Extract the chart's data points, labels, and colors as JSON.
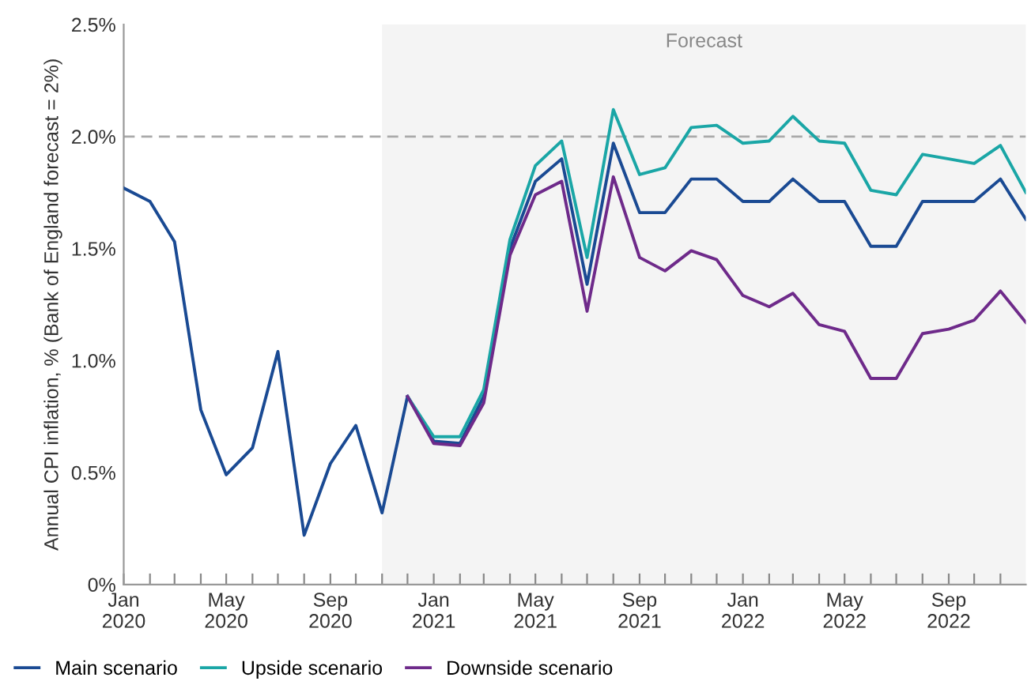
{
  "chart_data": {
    "type": "line",
    "ylabel": "Annual CPI inflation, % (Bank of England forecast = 2%)",
    "x": [
      "2020-01",
      "2020-02",
      "2020-03",
      "2020-04",
      "2020-05",
      "2020-06",
      "2020-07",
      "2020-08",
      "2020-09",
      "2020-10",
      "2020-11",
      "2020-12",
      "2021-01",
      "2021-02",
      "2021-03",
      "2021-04",
      "2021-05",
      "2021-06",
      "2021-07",
      "2021-08",
      "2021-09",
      "2021-10",
      "2021-11",
      "2021-12",
      "2022-01",
      "2022-02",
      "2022-03",
      "2022-04",
      "2022-05",
      "2022-06",
      "2022-07",
      "2022-08",
      "2022-09",
      "2022-10",
      "2022-11",
      "2022-12"
    ],
    "series": [
      {
        "name": "Main scenario",
        "color": "#1a4a93",
        "values": [
          1.77,
          1.71,
          1.53,
          0.78,
          0.49,
          0.61,
          1.04,
          0.22,
          0.54,
          0.71,
          0.32,
          0.84,
          0.64,
          0.63,
          0.84,
          1.5,
          1.8,
          1.9,
          1.34,
          1.97,
          1.66,
          1.66,
          1.81,
          1.81,
          1.71,
          1.71,
          1.81,
          1.71,
          1.71,
          1.51,
          1.51,
          1.71,
          1.71,
          1.71,
          1.81,
          1.63
        ]
      },
      {
        "name": "Upside scenario",
        "color": "#1aa6a6",
        "values": [
          null,
          null,
          null,
          null,
          null,
          null,
          null,
          null,
          null,
          null,
          null,
          0.84,
          0.66,
          0.66,
          0.87,
          1.54,
          1.87,
          1.98,
          1.46,
          2.12,
          1.83,
          1.86,
          2.04,
          2.05,
          1.97,
          1.98,
          2.09,
          1.98,
          1.97,
          1.76,
          1.74,
          1.92,
          1.9,
          1.88,
          1.96,
          1.75
        ]
      },
      {
        "name": "Downside scenario",
        "color": "#6e2a8a",
        "values": [
          null,
          null,
          null,
          null,
          null,
          null,
          null,
          null,
          null,
          null,
          null,
          0.84,
          0.63,
          0.62,
          0.81,
          1.47,
          1.74,
          1.8,
          1.22,
          1.82,
          1.46,
          1.4,
          1.49,
          1.45,
          1.29,
          1.24,
          1.3,
          1.16,
          1.13,
          0.92,
          0.92,
          1.12,
          1.14,
          1.18,
          1.31,
          1.17
        ]
      }
    ],
    "xlim": [
      "2020-01",
      "2022-12"
    ],
    "xticks": [
      {
        "value": "2020-01",
        "label": "Jan\n2020"
      },
      {
        "value": "2020-02",
        "label": null
      },
      {
        "value": "2020-03",
        "label": null
      },
      {
        "value": "2020-04",
        "label": null
      },
      {
        "value": "2020-05",
        "label": "May\n2020"
      },
      {
        "value": "2020-06",
        "label": null
      },
      {
        "value": "2020-07",
        "label": null
      },
      {
        "value": "2020-08",
        "label": null
      },
      {
        "value": "2020-09",
        "label": "Sep\n2020"
      },
      {
        "value": "2020-10",
        "label": null
      },
      {
        "value": "2020-11",
        "label": null
      },
      {
        "value": "2020-12",
        "label": null
      },
      {
        "value": "2021-01",
        "label": "Jan\n2021"
      },
      {
        "value": "2021-02",
        "label": null
      },
      {
        "value": "2021-03",
        "label": null
      },
      {
        "value": "2021-04",
        "label": null
      },
      {
        "value": "2021-05",
        "label": "May\n2021"
      },
      {
        "value": "2021-06",
        "label": null
      },
      {
        "value": "2021-07",
        "label": null
      },
      {
        "value": "2021-08",
        "label": null
      },
      {
        "value": "2021-09",
        "label": "Sep\n2021"
      },
      {
        "value": "2021-10",
        "label": null
      },
      {
        "value": "2021-11",
        "label": null
      },
      {
        "value": "2021-12",
        "label": null
      },
      {
        "value": "2022-01",
        "label": "Jan\n2022"
      },
      {
        "value": "2022-02",
        "label": null
      },
      {
        "value": "2022-03",
        "label": null
      },
      {
        "value": "2022-04",
        "label": null
      },
      {
        "value": "2022-05",
        "label": "May\n2022"
      },
      {
        "value": "2022-06",
        "label": null
      },
      {
        "value": "2022-07",
        "label": null
      },
      {
        "value": "2022-08",
        "label": null
      },
      {
        "value": "2022-09",
        "label": "Sep\n2022"
      },
      {
        "value": "2022-10",
        "label": null
      },
      {
        "value": "2022-11",
        "label": null
      }
    ],
    "ylim": [
      0,
      2.5
    ],
    "yticks": [
      {
        "value": 0,
        "label": "0%"
      },
      {
        "value": 0.5,
        "label": "0.5%"
      },
      {
        "value": 1.0,
        "label": "1.0%"
      },
      {
        "value": 1.5,
        "label": "1.5%"
      },
      {
        "value": 2.0,
        "label": "2.0%"
      },
      {
        "value": 2.5,
        "label": "2.5%"
      }
    ],
    "ref_lines": [
      {
        "axis": "y",
        "value": 2.0,
        "label": null,
        "color": "#aaaaaa",
        "line_style": "dashed"
      }
    ],
    "bands": [
      {
        "axis": "x",
        "from": "2020-11",
        "to": "2022-12",
        "label": "Forecast",
        "color": "#f4f4f4"
      }
    ],
    "grid": false,
    "legend": "bottom",
    "marker": "none",
    "line_style": "solid"
  }
}
